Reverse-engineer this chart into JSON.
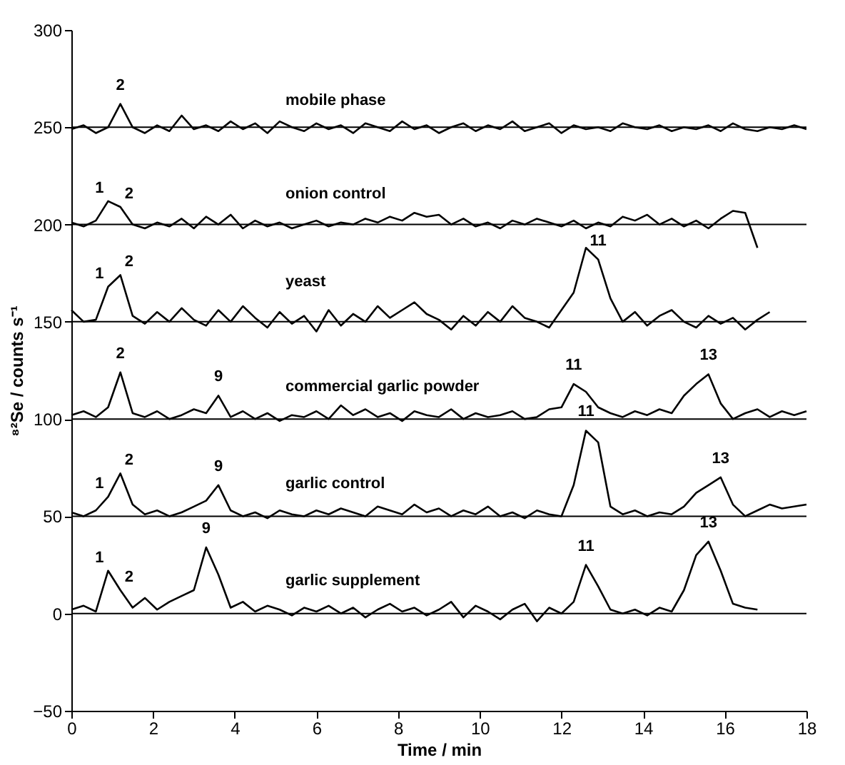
{
  "chart_data": {
    "type": "line",
    "xlabel": "Time / min",
    "ylabel": "⁸²Se / counts s⁻¹",
    "xlim": [
      0,
      18
    ],
    "xticks": [
      0,
      2,
      4,
      6,
      8,
      10,
      12,
      14,
      16,
      18
    ],
    "ylim": [
      -50,
      300
    ],
    "yticks": [
      -50,
      0,
      50,
      100,
      150,
      200,
      250,
      300
    ],
    "grid": false,
    "line_style": "solid",
    "x": [
      0,
      0.3,
      0.6,
      0.9,
      1.2,
      1.5,
      1.8,
      2.1,
      2.4,
      2.7,
      3.0,
      3.3,
      3.6,
      3.9,
      4.2,
      4.5,
      4.8,
      5.1,
      5.4,
      5.7,
      6.0,
      6.3,
      6.6,
      6.9,
      7.2,
      7.5,
      7.8,
      8.1,
      8.4,
      8.7,
      9.0,
      9.3,
      9.6,
      9.9,
      10.2,
      10.5,
      10.8,
      11.1,
      11.4,
      11.7,
      12.0,
      12.3,
      12.6,
      12.9,
      13.2,
      13.5,
      13.8,
      14.1,
      14.4,
      14.7,
      15.0,
      15.3,
      15.6,
      15.9,
      16.2,
      16.5,
      16.8,
      17.1,
      17.4,
      17.7,
      18.0
    ],
    "series": [
      {
        "name": "mobile phase",
        "color": "#000000",
        "values": [
          249,
          251,
          247,
          250,
          262,
          250,
          247,
          251,
          248,
          256,
          249,
          251,
          248,
          253,
          249,
          252,
          247,
          253,
          250,
          248,
          252,
          249,
          251,
          247,
          252,
          250,
          248,
          253,
          249,
          251,
          247,
          250,
          252,
          248,
          251,
          249,
          253,
          248,
          250,
          252,
          247,
          251,
          249,
          250,
          248,
          252,
          250,
          249,
          251,
          248,
          250,
          249,
          251,
          248,
          252,
          249,
          248,
          250,
          249,
          251,
          249
        ]
      },
      {
        "name": "onion control",
        "color": "#000000",
        "values": [
          201,
          199,
          202,
          212,
          209,
          200,
          198,
          201,
          199,
          203,
          198,
          204,
          200,
          205,
          198,
          202,
          199,
          201,
          198,
          200,
          202,
          199,
          201,
          200,
          203,
          201,
          204,
          202,
          206,
          204,
          205,
          200,
          203,
          199,
          201,
          198,
          202,
          200,
          203,
          201,
          199,
          202,
          198,
          201,
          199,
          204,
          202,
          205,
          200,
          203,
          199,
          202,
          198,
          203,
          207,
          206,
          188,
          null,
          null,
          null,
          null
        ]
      },
      {
        "name": "yeast",
        "color": "#000000",
        "values": [
          156,
          150,
          151,
          168,
          174,
          153,
          149,
          155,
          150,
          157,
          151,
          148,
          156,
          150,
          158,
          152,
          147,
          155,
          149,
          153,
          145,
          156,
          148,
          154,
          150,
          158,
          152,
          156,
          160,
          154,
          151,
          146,
          153,
          148,
          155,
          150,
          158,
          152,
          150,
          147,
          156,
          165,
          188,
          182,
          162,
          150,
          155,
          148,
          153,
          156,
          150,
          147,
          153,
          149,
          152,
          146,
          151,
          155,
          null,
          null,
          null
        ]
      },
      {
        "name": "commercial garlic powder",
        "color": "#000000",
        "values": [
          102,
          104,
          101,
          106,
          124,
          103,
          101,
          104,
          100,
          102,
          105,
          103,
          112,
          101,
          104,
          100,
          103,
          99,
          102,
          101,
          104,
          100,
          107,
          102,
          105,
          101,
          103,
          99,
          104,
          102,
          101,
          105,
          100,
          103,
          101,
          102,
          104,
          100,
          101,
          105,
          106,
          118,
          114,
          106,
          103,
          101,
          104,
          102,
          105,
          103,
          112,
          118,
          123,
          108,
          100,
          103,
          105,
          101,
          104,
          102,
          104
        ]
      },
      {
        "name": "garlic control",
        "color": "#000000",
        "values": [
          52,
          50,
          53,
          60,
          72,
          56,
          51,
          53,
          50,
          52,
          55,
          58,
          66,
          53,
          50,
          52,
          49,
          53,
          51,
          50,
          53,
          51,
          54,
          52,
          50,
          55,
          53,
          51,
          56,
          52,
          54,
          50,
          53,
          51,
          55,
          50,
          52,
          49,
          53,
          51,
          50,
          66,
          94,
          88,
          55,
          51,
          53,
          50,
          52,
          51,
          55,
          62,
          66,
          70,
          56,
          50,
          53,
          56,
          54,
          55,
          56
        ]
      },
      {
        "name": "garlic supplement",
        "color": "#000000",
        "values": [
          2,
          4,
          1,
          22,
          12,
          3,
          8,
          2,
          6,
          9,
          12,
          34,
          20,
          3,
          6,
          1,
          4,
          2,
          -1,
          3,
          1,
          4,
          0,
          3,
          -2,
          2,
          5,
          1,
          3,
          -1,
          2,
          6,
          -2,
          4,
          1,
          -3,
          2,
          5,
          -4,
          3,
          0,
          6,
          25,
          14,
          2,
          0,
          2,
          -1,
          3,
          1,
          12,
          30,
          37,
          22,
          5,
          3,
          2,
          null,
          null,
          null,
          null
        ]
      }
    ],
    "ref_lines": [
      {
        "axis": "y",
        "value": 250,
        "color": "#000000"
      },
      {
        "axis": "y",
        "value": 200,
        "color": "#000000"
      },
      {
        "axis": "y",
        "value": 150,
        "color": "#000000"
      },
      {
        "axis": "y",
        "value": 100,
        "color": "#000000"
      },
      {
        "axis": "y",
        "value": 50,
        "color": "#000000"
      },
      {
        "axis": "y",
        "value": 0,
        "color": "#000000"
      }
    ],
    "annotations": [
      {
        "text": "2",
        "x": 1.2,
        "y": 262
      },
      {
        "text": "1",
        "x": 0.9,
        "y": 212
      },
      {
        "text": "2",
        "x": 1.2,
        "y": 209
      },
      {
        "text": "1",
        "x": 0.9,
        "y": 168
      },
      {
        "text": "2",
        "x": 1.2,
        "y": 174
      },
      {
        "text": "11",
        "x": 12.9,
        "y": 182
      },
      {
        "text": "2",
        "x": 1.2,
        "y": 124
      },
      {
        "text": "9",
        "x": 3.6,
        "y": 112
      },
      {
        "text": "11",
        "x": 12.3,
        "y": 118
      },
      {
        "text": "13",
        "x": 15.6,
        "y": 123
      },
      {
        "text": "1",
        "x": 0.9,
        "y": 60
      },
      {
        "text": "2",
        "x": 1.2,
        "y": 72
      },
      {
        "text": "9",
        "x": 3.6,
        "y": 66
      },
      {
        "text": "11",
        "x": 12.6,
        "y": 94
      },
      {
        "text": "13",
        "x": 15.9,
        "y": 70
      },
      {
        "text": "1",
        "x": 0.9,
        "y": 22
      },
      {
        "text": "2",
        "x": 1.2,
        "y": 12
      },
      {
        "text": "9",
        "x": 3.3,
        "y": 34
      },
      {
        "text": "11",
        "x": 12.6,
        "y": 25
      },
      {
        "text": "13",
        "x": 15.6,
        "y": 37
      }
    ]
  }
}
